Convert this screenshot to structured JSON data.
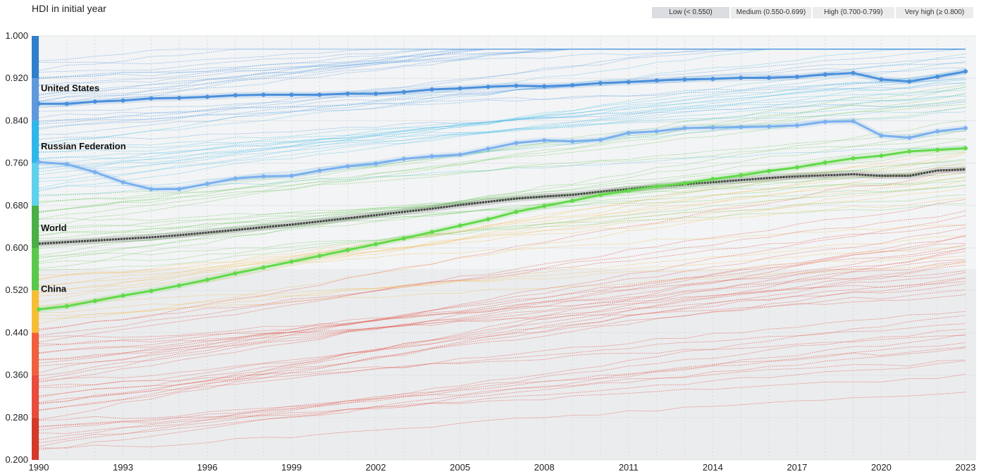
{
  "title": "HDI in initial year",
  "legend": [
    {
      "label": "Low (< 0.550)",
      "color": "#e8473b"
    },
    {
      "label": "Medium (0.550-0.699)",
      "color": "#f4b43a"
    },
    {
      "label": "High (0.700-0.799)",
      "color": "#5cc24c"
    },
    {
      "label": "Very high (≥ 0.800)",
      "color": "#2b79c7"
    }
  ],
  "chart_data": {
    "type": "line",
    "x": [
      1990,
      1991,
      1992,
      1993,
      1994,
      1995,
      1996,
      1997,
      1998,
      1999,
      2000,
      2001,
      2002,
      2003,
      2004,
      2005,
      2006,
      2007,
      2008,
      2009,
      2010,
      2011,
      2012,
      2013,
      2014,
      2015,
      2016,
      2017,
      2018,
      2019,
      2020,
      2021,
      2022,
      2023
    ],
    "x_ticks": [
      "1990",
      "1993",
      "1996",
      "1999",
      "2002",
      "2005",
      "2008",
      "2011",
      "2014",
      "2017",
      "2020",
      "2023"
    ],
    "y_ticks": [
      "0.200",
      "0.280",
      "0.360",
      "0.440",
      "0.520",
      "0.600",
      "0.680",
      "0.760",
      "0.840",
      "0.920",
      "1.000"
    ],
    "ylim": [
      0.2,
      1.0
    ],
    "xlim": [
      1990,
      2023
    ],
    "grid": true,
    "y_color_bands": [
      {
        "from": 0.2,
        "to": 0.28,
        "color": "#d43a2a"
      },
      {
        "from": 0.28,
        "to": 0.36,
        "color": "#e84c3c"
      },
      {
        "from": 0.36,
        "to": 0.44,
        "color": "#f0603c"
      },
      {
        "from": 0.44,
        "to": 0.52,
        "color": "#f5be35"
      },
      {
        "from": 0.52,
        "to": 0.6,
        "color": "#5ac94b"
      },
      {
        "from": 0.6,
        "to": 0.68,
        "color": "#4aaf45"
      },
      {
        "from": 0.68,
        "to": 0.76,
        "color": "#5fd1ec"
      },
      {
        "from": 0.76,
        "to": 0.84,
        "color": "#30b7ea"
      },
      {
        "from": 0.84,
        "to": 0.92,
        "color": "#5f99dd"
      },
      {
        "from": 0.92,
        "to": 1.0,
        "color": "#2f7fcc"
      }
    ],
    "series": [
      {
        "name": "United States",
        "color": "#4a8fdb",
        "values": [
          0.872,
          0.872,
          0.876,
          0.878,
          0.882,
          0.883,
          0.885,
          0.888,
          0.889,
          0.889,
          0.889,
          0.891,
          0.891,
          0.894,
          0.899,
          0.901,
          0.904,
          0.906,
          0.905,
          0.907,
          0.911,
          0.913,
          0.916,
          0.918,
          0.919,
          0.921,
          0.921,
          0.923,
          0.927,
          0.93,
          0.918,
          0.914,
          0.923,
          0.933
        ]
      },
      {
        "name": "Russian Federation",
        "color": "#7ab0ee",
        "values": [
          0.762,
          0.758,
          0.743,
          0.724,
          0.711,
          0.711,
          0.721,
          0.731,
          0.735,
          0.736,
          0.746,
          0.754,
          0.759,
          0.768,
          0.773,
          0.776,
          0.787,
          0.798,
          0.803,
          0.801,
          0.804,
          0.817,
          0.82,
          0.826,
          0.827,
          0.828,
          0.829,
          0.831,
          0.838,
          0.839,
          0.812,
          0.808,
          0.82,
          0.826
        ]
      },
      {
        "name": "World",
        "color": "#444444",
        "values": [
          0.608,
          0.611,
          0.614,
          0.617,
          0.62,
          0.624,
          0.629,
          0.634,
          0.639,
          0.644,
          0.65,
          0.656,
          0.662,
          0.668,
          0.674,
          0.681,
          0.687,
          0.693,
          0.697,
          0.7,
          0.706,
          0.711,
          0.716,
          0.72,
          0.724,
          0.728,
          0.732,
          0.735,
          0.737,
          0.739,
          0.736,
          0.736,
          0.746,
          0.748
        ]
      },
      {
        "name": "China",
        "color": "#62d94a",
        "values": [
          0.484,
          0.49,
          0.5,
          0.51,
          0.519,
          0.529,
          0.54,
          0.552,
          0.563,
          0.574,
          0.585,
          0.596,
          0.607,
          0.618,
          0.63,
          0.642,
          0.654,
          0.668,
          0.679,
          0.689,
          0.7,
          0.708,
          0.716,
          0.722,
          0.73,
          0.737,
          0.745,
          0.752,
          0.761,
          0.769,
          0.774,
          0.782,
          0.785,
          0.788
        ]
      }
    ]
  }
}
